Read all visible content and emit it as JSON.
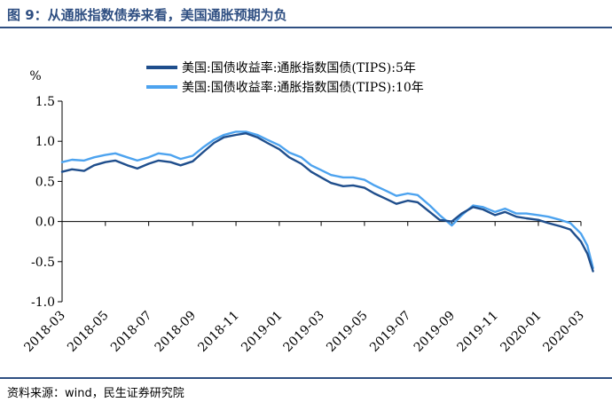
{
  "figure": {
    "title": "图 9：从通胀指数债券来看，美国通胀预期为负",
    "source": "资料来源：wind，民生证券研究院"
  },
  "chart_data": {
    "type": "line",
    "ylabel": "%",
    "ylim": [
      -1.0,
      1.5
    ],
    "yticks": [
      "1.5",
      "1.0",
      "0.5",
      "0.0",
      "-0.5",
      "-1.0"
    ],
    "ytick_values": [
      1.5,
      1.0,
      0.5,
      0.0,
      -0.5,
      -1.0
    ],
    "xlim": [
      "2018-03",
      "2020-03"
    ],
    "xticks": [
      "2018-03",
      "2018-05",
      "2018-07",
      "2018-09",
      "2018-11",
      "2019-01",
      "2019-03",
      "2019-05",
      "2019-07",
      "2019-09",
      "2019-11",
      "2020-01",
      "2020-03"
    ],
    "grid": false,
    "legend_position": "top",
    "x": [
      "2018-03-01",
      "2018-03-15",
      "2018-04-01",
      "2018-04-15",
      "2018-05-01",
      "2018-05-15",
      "2018-06-01",
      "2018-06-15",
      "2018-07-01",
      "2018-07-15",
      "2018-08-01",
      "2018-08-15",
      "2018-09-01",
      "2018-09-15",
      "2018-10-01",
      "2018-10-15",
      "2018-11-01",
      "2018-11-15",
      "2018-12-01",
      "2018-12-15",
      "2019-01-01",
      "2019-01-15",
      "2019-02-01",
      "2019-02-15",
      "2019-03-01",
      "2019-03-15",
      "2019-04-01",
      "2019-04-15",
      "2019-05-01",
      "2019-05-15",
      "2019-06-01",
      "2019-06-15",
      "2019-07-01",
      "2019-07-15",
      "2019-08-01",
      "2019-08-15",
      "2019-09-01",
      "2019-09-15",
      "2019-10-01",
      "2019-10-15",
      "2019-11-01",
      "2019-11-15",
      "2019-12-01",
      "2019-12-15",
      "2020-01-01",
      "2020-01-15",
      "2020-02-01",
      "2020-02-15",
      "2020-03-01",
      "2020-03-10",
      "2020-03-18"
    ],
    "series": [
      {
        "name": "美国:国债收益率:通胀指数国债(TIPS):5年",
        "color": "#1f4e8c",
        "values": [
          0.62,
          0.65,
          0.63,
          0.7,
          0.74,
          0.76,
          0.7,
          0.66,
          0.72,
          0.76,
          0.74,
          0.7,
          0.75,
          0.86,
          0.98,
          1.05,
          1.08,
          1.1,
          1.05,
          0.98,
          0.9,
          0.8,
          0.72,
          0.62,
          0.55,
          0.48,
          0.44,
          0.45,
          0.42,
          0.35,
          0.28,
          0.22,
          0.26,
          0.24,
          0.12,
          0.02,
          0.0,
          0.1,
          0.18,
          0.15,
          0.08,
          0.12,
          0.06,
          0.04,
          0.02,
          -0.02,
          -0.06,
          -0.1,
          -0.25,
          -0.4,
          -0.62
        ]
      },
      {
        "name": "美国:国债收益率:通胀指数国债(TIPS):10年",
        "color": "#4da3ef",
        "values": [
          0.74,
          0.77,
          0.76,
          0.8,
          0.83,
          0.85,
          0.8,
          0.76,
          0.8,
          0.85,
          0.83,
          0.78,
          0.82,
          0.92,
          1.02,
          1.08,
          1.12,
          1.12,
          1.08,
          1.02,
          0.95,
          0.86,
          0.8,
          0.7,
          0.64,
          0.58,
          0.55,
          0.55,
          0.52,
          0.45,
          0.38,
          0.32,
          0.35,
          0.33,
          0.2,
          0.08,
          -0.05,
          0.08,
          0.2,
          0.18,
          0.12,
          0.16,
          0.1,
          0.1,
          0.08,
          0.06,
          0.02,
          -0.02,
          -0.15,
          -0.3,
          -0.58
        ]
      }
    ]
  }
}
